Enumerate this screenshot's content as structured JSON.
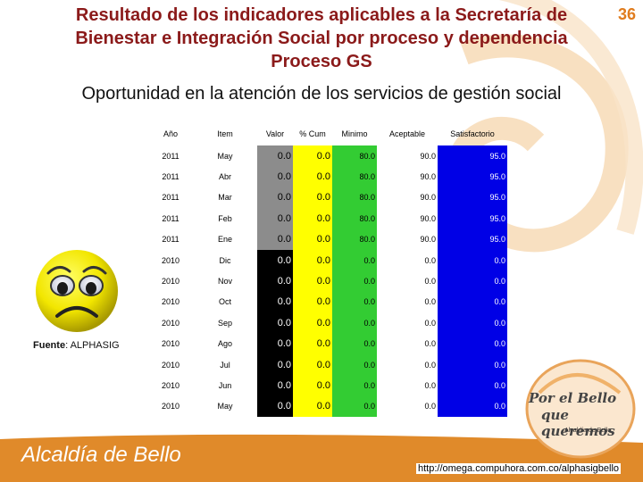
{
  "title": "Resultado de los indicadores aplicables a la Secretaría de Bienestar e Integración Social por proceso y dependencia Proceso GS",
  "slide_number": "36",
  "subtitle": "Oportunidad en la atención de los servicios de gestión social",
  "table": {
    "headers": [
      "Año",
      "Item",
      "Valor",
      "% Cum",
      "Minimo",
      "Aceptable",
      "Satisfactorio"
    ],
    "rows": [
      [
        "2011",
        "May",
        "0.0",
        "0.0",
        "80.0",
        "90.0",
        "95.0"
      ],
      [
        "2011",
        "Abr",
        "0.0",
        "0.0",
        "80.0",
        "90.0",
        "95.0"
      ],
      [
        "2011",
        "Mar",
        "0.0",
        "0.0",
        "80.0",
        "90.0",
        "95.0"
      ],
      [
        "2011",
        "Feb",
        "0.0",
        "0.0",
        "80.0",
        "90.0",
        "95.0"
      ],
      [
        "2011",
        "Ene",
        "0.0",
        "0.0",
        "80.0",
        "90.0",
        "95.0"
      ],
      [
        "2010",
        "Dic",
        "0.0",
        "0.0",
        "0.0",
        "0.0",
        "0.0"
      ],
      [
        "2010",
        "Nov",
        "0.0",
        "0.0",
        "0.0",
        "0.0",
        "0.0"
      ],
      [
        "2010",
        "Oct",
        "0.0",
        "0.0",
        "0.0",
        "0.0",
        "0.0"
      ],
      [
        "2010",
        "Sep",
        "0.0",
        "0.0",
        "0.0",
        "0.0",
        "0.0"
      ],
      [
        "2010",
        "Ago",
        "0.0",
        "0.0",
        "0.0",
        "0.0",
        "0.0"
      ],
      [
        "2010",
        "Jul",
        "0.0",
        "0.0",
        "0.0",
        "0.0",
        "0.0"
      ],
      [
        "2010",
        "Jun",
        "0.0",
        "0.0",
        "0.0",
        "0.0",
        "0.0"
      ],
      [
        "2010",
        "May",
        "0.0",
        "0.0",
        "0.0",
        "0.0",
        "0.0"
      ]
    ],
    "valor_color_2011": "#8c8c8c",
    "valor_color_2010": "#000000",
    "colors": {
      "cum": "#ffff00",
      "minimo": "#33cc33",
      "satisfactorio": "#0000e6"
    }
  },
  "face_icon": "sad-face-icon",
  "fuente": {
    "label": "Fuente",
    "value": ": ALPHASIG"
  },
  "footer": {
    "org": "Alcaldía de Bello",
    "url": "http://omega.compuhora.com.co/alphasigbello"
  },
  "logo": {
    "line1": "Por el Bello",
    "line2": "que queremos",
    "line3": "Alcaldía de Bello"
  },
  "theme": {
    "title_color": "#8b1a1a",
    "accent": "#e07c1e"
  }
}
